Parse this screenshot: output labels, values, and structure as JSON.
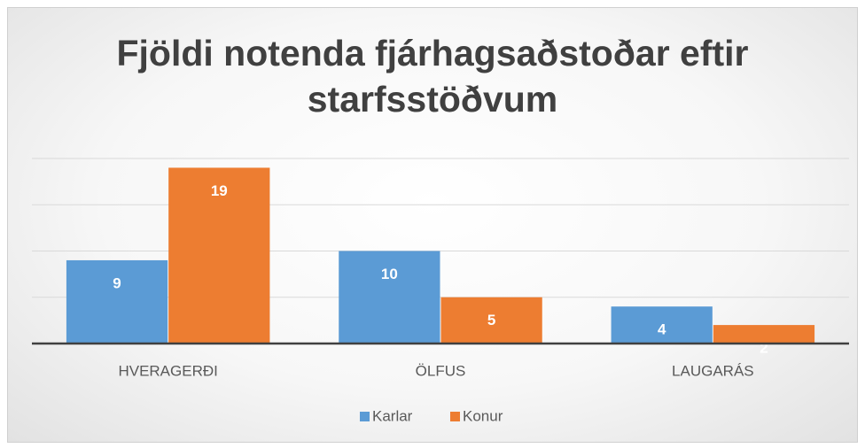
{
  "chart_data": {
    "type": "bar",
    "title": "Fjöldi notenda fjárhagsaðstoðar eftir starfsstöðvum",
    "categories": [
      "HVERAGERÐI",
      "ÖLFUS",
      "LAUGARÁS"
    ],
    "series": [
      {
        "name": "Karlar",
        "color": "#5b9bd5",
        "values": [
          9,
          10,
          4
        ]
      },
      {
        "name": "Konur",
        "color": "#ed7d31",
        "values": [
          19,
          5,
          2
        ]
      }
    ],
    "ylim": [
      0,
      20
    ],
    "yticks": [
      0,
      5,
      10,
      15,
      20
    ],
    "grid": true,
    "legend": "bottom"
  }
}
